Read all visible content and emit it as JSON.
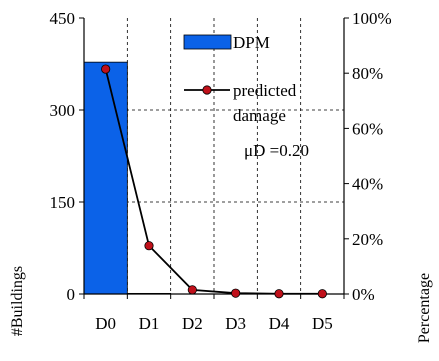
{
  "chart_data": {
    "type": "bar",
    "categories": [
      "D0",
      "D1",
      "D2",
      "D3",
      "D4",
      "D5"
    ],
    "series": [
      {
        "name": "DPM",
        "kind": "bar",
        "axis": "left",
        "values": [
          378,
          1,
          0,
          0,
          0,
          0
        ],
        "color": "#0b62e8"
      },
      {
        "name": "predicted damage",
        "kind": "line",
        "axis": "right",
        "values": [
          81.5,
          17.5,
          1.5,
          0.3,
          0.1,
          0.1
        ],
        "color": "#c0101a"
      }
    ],
    "ylabel": "#Buildings",
    "ylabel_right": "Percentage",
    "ylim": [
      0,
      450
    ],
    "y_ticks": [
      0,
      150,
      300,
      450
    ],
    "y_tick_labels": [
      "0",
      "150",
      "300",
      "450"
    ],
    "ylim_right": [
      0,
      100
    ],
    "y2_ticks": [
      0,
      20,
      40,
      60,
      80,
      100
    ],
    "y2_tick_labels": [
      "0%",
      "20%",
      "40%",
      "60%",
      "80%",
      "100%"
    ],
    "grid": true,
    "legend": [
      {
        "label": "DPM",
        "symbol": "bar"
      },
      {
        "label": "predicted",
        "label_line2": "damage",
        "symbol": "line-marker"
      }
    ],
    "legend_position": "top-right",
    "annotation": "μD =0.20"
  }
}
